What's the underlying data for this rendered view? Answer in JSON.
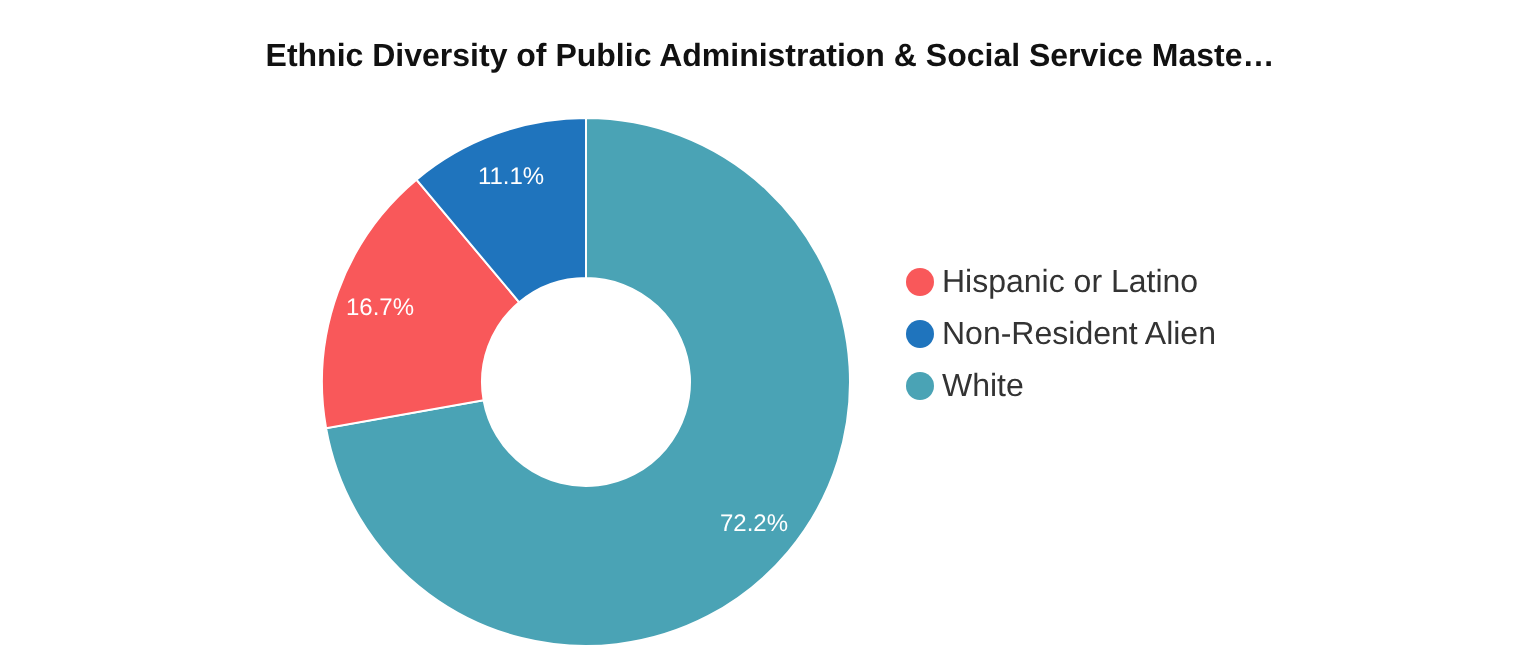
{
  "chart_data": {
    "type": "donut",
    "title": "Ethnic Diversity of Public Administration & Social Service Maste…",
    "categories": [
      "White",
      "Hispanic or Latino",
      "Non-Resident Alien"
    ],
    "values": [
      72.2,
      16.7,
      11.1
    ],
    "colors": [
      "#4aa3b5",
      "#f9585a",
      "#1f74bd"
    ],
    "value_labels": [
      "72.2%",
      "16.7%",
      "11.1%"
    ],
    "legend": "right"
  }
}
